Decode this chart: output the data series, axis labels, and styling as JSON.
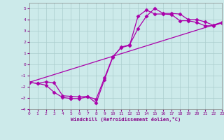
{
  "xlabel": "Windchill (Refroidissement éolien,°C)",
  "bg_color": "#cceaea",
  "grid_color": "#aacccc",
  "line_color": "#aa00aa",
  "xlim": [
    0,
    23
  ],
  "ylim": [
    -4,
    5.5
  ],
  "xticks": [
    0,
    1,
    2,
    3,
    4,
    5,
    6,
    7,
    8,
    9,
    10,
    11,
    12,
    13,
    14,
    15,
    16,
    17,
    18,
    19,
    20,
    21,
    22,
    23
  ],
  "yticks": [
    -4,
    -3,
    -2,
    -1,
    0,
    1,
    2,
    3,
    4,
    5
  ],
  "line1_x": [
    0,
    1,
    2,
    3,
    4,
    5,
    6,
    7,
    8,
    9,
    10,
    11,
    12,
    13,
    14,
    15,
    16,
    17,
    18,
    19,
    20,
    21,
    22,
    23
  ],
  "line1_y": [
    -1.6,
    -1.7,
    -1.55,
    -1.65,
    -2.8,
    -2.85,
    -2.9,
    -2.85,
    -3.45,
    -1.35,
    0.65,
    1.55,
    1.75,
    3.2,
    4.3,
    5.0,
    4.55,
    4.55,
    4.5,
    4.0,
    4.0,
    3.8,
    3.5,
    3.75
  ],
  "line2_x": [
    0,
    1,
    2,
    3,
    4,
    5,
    6,
    7,
    8,
    9,
    10,
    11,
    12,
    13,
    14,
    15,
    16,
    17,
    18,
    19,
    20,
    21,
    22,
    23
  ],
  "line2_y": [
    -1.6,
    -1.7,
    -1.85,
    -2.5,
    -2.95,
    -3.05,
    -3.05,
    -2.9,
    -3.1,
    -1.2,
    0.7,
    1.5,
    1.7,
    4.3,
    4.85,
    4.5,
    4.5,
    4.45,
    3.9,
    3.9,
    3.75,
    3.45,
    3.45,
    3.7
  ],
  "line3_x": [
    0,
    23
  ],
  "line3_y": [
    -1.6,
    3.75
  ]
}
